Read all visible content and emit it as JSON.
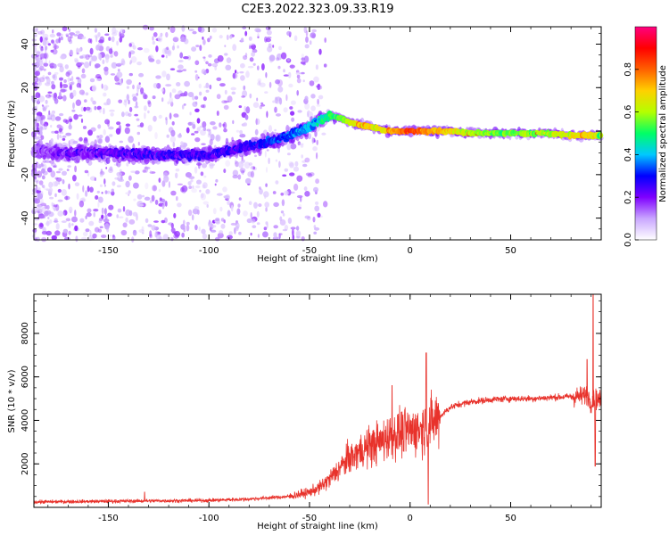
{
  "title": "C2E3.2022.323.09.33.R19",
  "chart_data": [
    {
      "type": "heatmap",
      "xlabel": "Height of straight line (km)",
      "ylabel": "Frequency (Hz)",
      "xlim": [
        -187,
        95
      ],
      "ylim": [
        -50,
        48
      ],
      "xticks": [
        -150,
        -100,
        -50,
        0,
        50
      ],
      "yticks": [
        -40,
        -20,
        0,
        20,
        40
      ],
      "colorbar": {
        "label": "Normalized spectral amplitude",
        "range": [
          0.0,
          1.0
        ],
        "ticks": [
          0.0,
          0.2,
          0.4,
          0.6,
          0.8
        ],
        "colors": [
          "#ffffff",
          "#c9a6ff",
          "#7f00ff",
          "#0000ff",
          "#00c8ff",
          "#00ff66",
          "#b4ff00",
          "#ffd000",
          "#ff6000",
          "#ff0000",
          "#ff0080"
        ]
      },
      "ridge_x": [
        -187,
        -170,
        -150,
        -130,
        -110,
        -100,
        -90,
        -80,
        -70,
        -60,
        -50,
        -45,
        -40,
        -35,
        -30,
        -25,
        -20,
        -15,
        -10,
        -5,
        0,
        10,
        20,
        30,
        40,
        50,
        60,
        70,
        80,
        90,
        95
      ],
      "ridge_y": [
        -9,
        -10,
        -10,
        -11,
        -11,
        -11,
        -9,
        -7,
        -5,
        -2,
        2,
        5,
        7,
        6,
        4,
        3,
        2,
        1,
        0,
        0,
        0,
        0,
        0,
        -1,
        -1,
        -1,
        -1,
        -1,
        -2,
        -2,
        -2
      ],
      "ridge_amplitude": [
        0.15,
        0.2,
        0.22,
        0.25,
        0.25,
        0.25,
        0.25,
        0.27,
        0.3,
        0.32,
        0.38,
        0.42,
        0.48,
        0.55,
        0.62,
        0.72,
        0.7,
        0.65,
        0.72,
        0.78,
        0.85,
        0.75,
        0.7,
        0.6,
        0.58,
        0.55,
        0.58,
        0.6,
        0.65,
        0.7,
        0.55
      ]
    },
    {
      "type": "line",
      "xlabel": "Height of straight line (km)",
      "ylabel": "SNR (10 * v/v)",
      "xlim": [
        -187,
        95
      ],
      "ylim": [
        0,
        9800
      ],
      "xticks": [
        -150,
        -100,
        -50,
        0,
        50
      ],
      "yticks": [
        2000,
        4000,
        6000,
        8000
      ],
      "color": "#e8322b",
      "envelope_x": [
        -187,
        -150,
        -100,
        -80,
        -60,
        -50,
        -45,
        -40,
        -35,
        -30,
        -25,
        -20,
        -15,
        -10,
        -5,
        0,
        5,
        10,
        15,
        20,
        25,
        30,
        40,
        50,
        60,
        70,
        80,
        85,
        88,
        90,
        92,
        95
      ],
      "envelope_y": [
        250,
        280,
        320,
        380,
        500,
        700,
        900,
        1300,
        1800,
        2300,
        2600,
        2800,
        3000,
        3300,
        3400,
        3500,
        3600,
        3800,
        4200,
        4600,
        4750,
        4850,
        4950,
        5000,
        5000,
        5050,
        5100,
        5100,
        5200,
        4800,
        5000,
        4900
      ],
      "spikes": [
        {
          "x": -132,
          "y": 700
        },
        {
          "x": -28,
          "y": 2300
        },
        {
          "x": -20,
          "y": 3400
        },
        {
          "x": -9,
          "y": 5600
        },
        {
          "x": 8,
          "y": 7100
        },
        {
          "x": 9,
          "y": 150
        },
        {
          "x": 88,
          "y": 6800
        },
        {
          "x": 91,
          "y": 9800
        },
        {
          "x": 92,
          "y": 1900
        }
      ]
    }
  ]
}
